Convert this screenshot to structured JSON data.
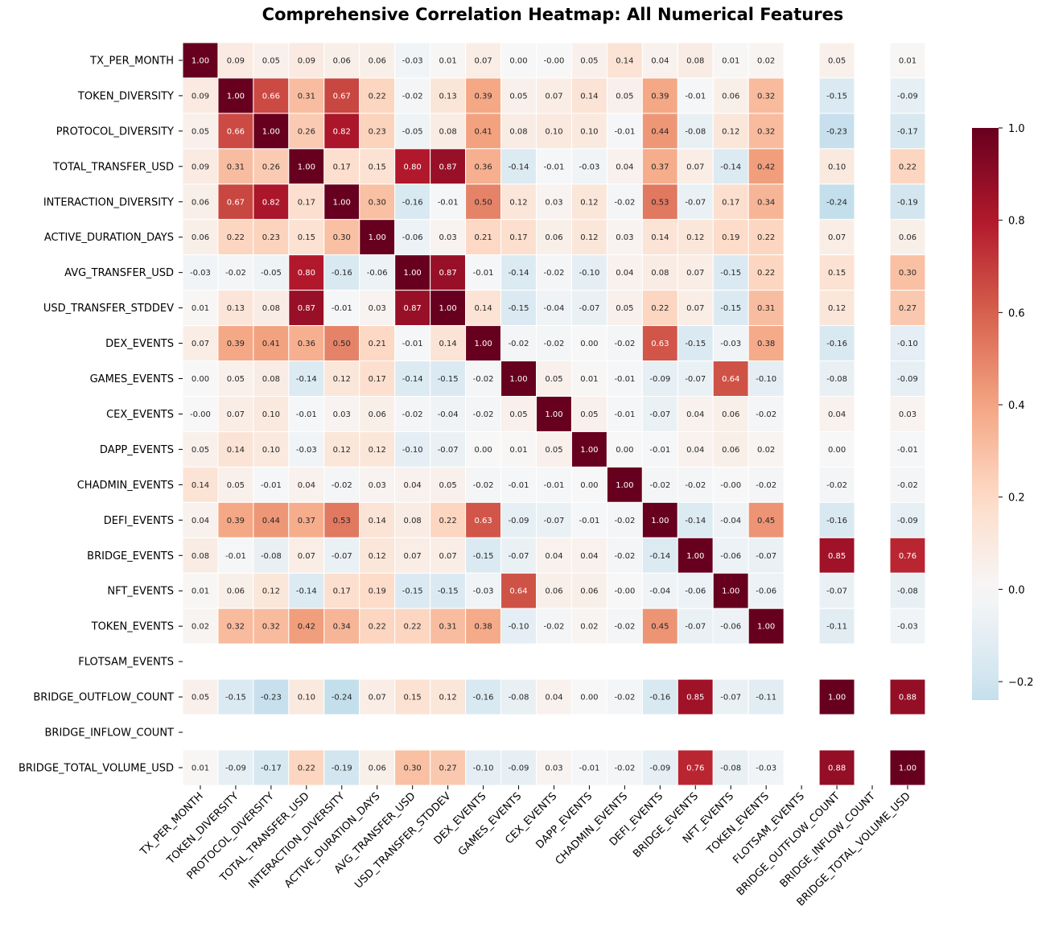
{
  "chart_data": {
    "type": "heatmap",
    "title": "Comprehensive Correlation Heatmap: All Numerical Features",
    "xlabel": "",
    "ylabel": "",
    "labels": [
      "TX_PER_MONTH",
      "TOKEN_DIVERSITY",
      "PROTOCOL_DIVERSITY",
      "TOTAL_TRANSFER_USD",
      "INTERACTION_DIVERSITY",
      "ACTIVE_DURATION_DAYS",
      "AVG_TRANSFER_USD",
      "USD_TRANSFER_STDDEV",
      "DEX_EVENTS",
      "GAMES_EVENTS",
      "CEX_EVENTS",
      "DAPP_EVENTS",
      "CHADMIN_EVENTS",
      "DEFI_EVENTS",
      "BRIDGE_EVENTS",
      "NFT_EVENTS",
      "TOKEN_EVENTS",
      "FLOTSAM_EVENTS",
      "BRIDGE_OUTFLOW_COUNT",
      "BRIDGE_INFLOW_COUNT",
      "BRIDGE_TOTAL_VOLUME_USD"
    ],
    "values": [
      [
        1.0,
        0.09,
        0.05,
        0.09,
        0.06,
        0.06,
        -0.03,
        0.01,
        0.07,
        0.0,
        -0.0,
        0.05,
        0.14,
        0.04,
        0.08,
        0.01,
        0.02,
        null,
        0.05,
        null,
        0.01
      ],
      [
        0.09,
        1.0,
        0.66,
        0.31,
        0.67,
        0.22,
        -0.02,
        0.13,
        0.39,
        0.05,
        0.07,
        0.14,
        0.05,
        0.39,
        -0.01,
        0.06,
        0.32,
        null,
        -0.15,
        null,
        -0.09
      ],
      [
        0.05,
        0.66,
        1.0,
        0.26,
        0.82,
        0.23,
        -0.05,
        0.08,
        0.41,
        0.08,
        0.1,
        0.1,
        -0.01,
        0.44,
        -0.08,
        0.12,
        0.32,
        null,
        -0.23,
        null,
        -0.17
      ],
      [
        0.09,
        0.31,
        0.26,
        1.0,
        0.17,
        0.15,
        0.8,
        0.87,
        0.36,
        -0.14,
        -0.01,
        -0.03,
        0.04,
        0.37,
        0.07,
        -0.14,
        0.42,
        null,
        0.1,
        null,
        0.22
      ],
      [
        0.06,
        0.67,
        0.82,
        0.17,
        1.0,
        0.3,
        -0.16,
        -0.01,
        0.5,
        0.12,
        0.03,
        0.12,
        -0.02,
        0.53,
        -0.07,
        0.17,
        0.34,
        null,
        -0.24,
        null,
        -0.19
      ],
      [
        0.06,
        0.22,
        0.23,
        0.15,
        0.3,
        1.0,
        -0.06,
        0.03,
        0.21,
        0.17,
        0.06,
        0.12,
        0.03,
        0.14,
        0.12,
        0.19,
        0.22,
        null,
        0.07,
        null,
        0.06
      ],
      [
        -0.03,
        -0.02,
        -0.05,
        0.8,
        -0.16,
        -0.06,
        1.0,
        0.87,
        -0.01,
        -0.14,
        -0.02,
        -0.1,
        0.04,
        0.08,
        0.07,
        -0.15,
        0.22,
        null,
        0.15,
        null,
        0.3
      ],
      [
        0.01,
        0.13,
        0.08,
        0.87,
        -0.01,
        0.03,
        0.87,
        1.0,
        0.14,
        -0.15,
        -0.04,
        -0.07,
        0.05,
        0.22,
        0.07,
        -0.15,
        0.31,
        null,
        0.12,
        null,
        0.27
      ],
      [
        0.07,
        0.39,
        0.41,
        0.36,
        0.5,
        0.21,
        -0.01,
        0.14,
        1.0,
        -0.02,
        -0.02,
        0.0,
        -0.02,
        0.63,
        -0.15,
        -0.03,
        0.38,
        null,
        -0.16,
        null,
        -0.1
      ],
      [
        0.0,
        0.05,
        0.08,
        -0.14,
        0.12,
        0.17,
        -0.14,
        -0.15,
        -0.02,
        1.0,
        0.05,
        0.01,
        -0.01,
        -0.09,
        -0.07,
        0.64,
        -0.1,
        null,
        -0.08,
        null,
        -0.09
      ],
      [
        -0.0,
        0.07,
        0.1,
        -0.01,
        0.03,
        0.06,
        -0.02,
        -0.04,
        -0.02,
        0.05,
        1.0,
        0.05,
        -0.01,
        -0.07,
        0.04,
        0.06,
        -0.02,
        null,
        0.04,
        null,
        0.03
      ],
      [
        0.05,
        0.14,
        0.1,
        -0.03,
        0.12,
        0.12,
        -0.1,
        -0.07,
        0.0,
        0.01,
        0.05,
        1.0,
        0.0,
        -0.01,
        0.04,
        0.06,
        0.02,
        null,
        0.0,
        null,
        -0.01
      ],
      [
        0.14,
        0.05,
        -0.01,
        0.04,
        -0.02,
        0.03,
        0.04,
        0.05,
        -0.02,
        -0.01,
        -0.01,
        0.0,
        1.0,
        -0.02,
        -0.02,
        -0.0,
        -0.02,
        null,
        -0.02,
        null,
        -0.02
      ],
      [
        0.04,
        0.39,
        0.44,
        0.37,
        0.53,
        0.14,
        0.08,
        0.22,
        0.63,
        -0.09,
        -0.07,
        -0.01,
        -0.02,
        1.0,
        -0.14,
        -0.04,
        0.45,
        null,
        -0.16,
        null,
        -0.09
      ],
      [
        0.08,
        -0.01,
        -0.08,
        0.07,
        -0.07,
        0.12,
        0.07,
        0.07,
        -0.15,
        -0.07,
        0.04,
        0.04,
        -0.02,
        -0.14,
        1.0,
        -0.06,
        -0.07,
        null,
        0.85,
        null,
        0.76
      ],
      [
        0.01,
        0.06,
        0.12,
        -0.14,
        0.17,
        0.19,
        -0.15,
        -0.15,
        -0.03,
        0.64,
        0.06,
        0.06,
        -0.0,
        -0.04,
        -0.06,
        1.0,
        -0.06,
        null,
        -0.07,
        null,
        -0.08
      ],
      [
        0.02,
        0.32,
        0.32,
        0.42,
        0.34,
        0.22,
        0.22,
        0.31,
        0.38,
        -0.1,
        -0.02,
        0.02,
        -0.02,
        0.45,
        -0.07,
        -0.06,
        1.0,
        null,
        -0.11,
        null,
        -0.03
      ],
      [
        null,
        null,
        null,
        null,
        null,
        null,
        null,
        null,
        null,
        null,
        null,
        null,
        null,
        null,
        null,
        null,
        null,
        null,
        null,
        null,
        null
      ],
      [
        0.05,
        -0.15,
        -0.23,
        0.1,
        -0.24,
        0.07,
        0.15,
        0.12,
        -0.16,
        -0.08,
        0.04,
        0.0,
        -0.02,
        -0.16,
        0.85,
        -0.07,
        -0.11,
        null,
        1.0,
        null,
        0.88
      ],
      [
        null,
        null,
        null,
        null,
        null,
        null,
        null,
        null,
        null,
        null,
        null,
        null,
        null,
        null,
        null,
        null,
        null,
        null,
        null,
        null,
        null
      ],
      [
        0.01,
        -0.09,
        -0.17,
        0.22,
        -0.19,
        0.06,
        0.3,
        0.27,
        -0.1,
        -0.09,
        0.03,
        -0.01,
        -0.02,
        -0.09,
        0.76,
        -0.08,
        -0.03,
        null,
        0.88,
        null,
        1.0
      ]
    ],
    "colorbar": {
      "vmin": -0.24,
      "vmax": 1.0,
      "center": 0,
      "colormap": "RdBu_r",
      "tick_values": [
        -0.2,
        0.0,
        0.2,
        0.4,
        0.6,
        0.8,
        1.0
      ],
      "tick_labels": [
        "−0.2",
        "0.0",
        "0.2",
        "0.4",
        "0.6",
        "0.8",
        "1.0"
      ]
    },
    "annotation_format": "0.00",
    "grid": false,
    "legend": "colorbar right"
  }
}
